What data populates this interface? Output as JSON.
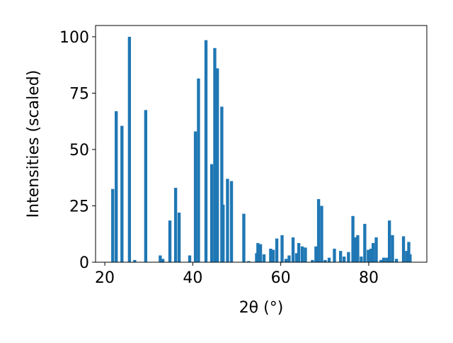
{
  "chart_data": {
    "type": "bar",
    "x": [
      21.8,
      22.6,
      23.9,
      25.6,
      26.8,
      29.3,
      32.6,
      33.2,
      34.8,
      36.1,
      36.9,
      39.3,
      40.6,
      41.3,
      43.0,
      44.3,
      45.0,
      45.6,
      46.6,
      46.9,
      47.9,
      48.8,
      51.6,
      52.7,
      54.5,
      54.8,
      55.4,
      56.2,
      57.7,
      58.3,
      59.1,
      60.3,
      61.2,
      61.9,
      62.8,
      63.6,
      64.1,
      64.9,
      65.6,
      67.2,
      68.0,
      68.6,
      69.3,
      70.1,
      71.0,
      72.2,
      73.6,
      74.4,
      75.4,
      76.4,
      77.0,
      77.5,
      78.3,
      79.1,
      79.9,
      80.5,
      81.0,
      81.7,
      82.8,
      83.4,
      84.1,
      84.7,
      85.4,
      86.3,
      87.9,
      88.6,
      89.1,
      89.4
    ],
    "values": [
      32.5,
      67,
      60.5,
      100,
      1,
      67.5,
      3,
      1.5,
      18.5,
      33,
      22,
      3,
      58,
      81.5,
      98.5,
      43.5,
      95,
      86,
      69,
      25.5,
      37,
      36,
      21.5,
      0.5,
      4,
      8.5,
      8,
      3.5,
      6,
      5.5,
      10.5,
      12,
      1.5,
      3,
      11,
      4,
      8.5,
      7,
      6.5,
      1,
      7,
      28,
      25,
      1,
      2,
      6,
      5,
      2.5,
      4.5,
      20.5,
      11,
      12,
      2.5,
      17,
      5.5,
      6,
      8.5,
      11,
      1,
      2,
      2,
      18.5,
      12,
      1.5,
      11.5,
      5,
      9,
      3.5
    ],
    "color": "#1f77b4",
    "xlabel": "2θ (°)",
    "ylabel": "Intensities (scaled)",
    "xlim": [
      17.9,
      93.2
    ],
    "xticks": [
      20,
      40,
      60,
      80
    ],
    "ylim": [
      0,
      105
    ],
    "yticks": [
      0,
      25,
      50,
      75,
      100
    ]
  }
}
